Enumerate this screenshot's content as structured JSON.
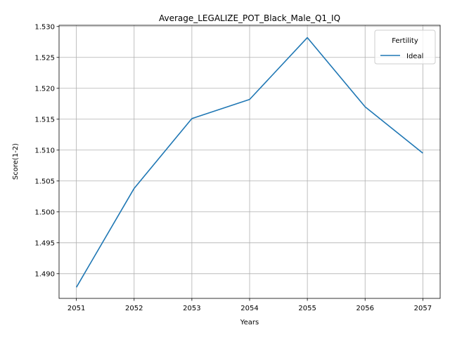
{
  "chart_data": {
    "type": "line",
    "title": "Average_LEGALIZE_POT_Black_Male_Q1_IQ",
    "xlabel": "Years",
    "ylabel": "Score(1-2)",
    "x": [
      2051,
      2052,
      2053,
      2054,
      2055,
      2056,
      2057
    ],
    "x_ticks": [
      "2051",
      "2052",
      "2053",
      "2054",
      "2055",
      "2056",
      "2057"
    ],
    "y_ticks": [
      "1.490",
      "1.495",
      "1.500",
      "1.505",
      "1.510",
      "1.515",
      "1.520",
      "1.525",
      "1.530"
    ],
    "xlim": [
      2050.7,
      2057.3
    ],
    "ylim": [
      1.486,
      1.5302
    ],
    "grid": true,
    "legend": {
      "title": "Fertility",
      "placement": "top-right"
    },
    "series": [
      {
        "name": "Ideal",
        "color": "#1f77b4",
        "values": [
          1.4878,
          1.5038,
          1.5151,
          1.5182,
          1.5282,
          1.517,
          1.5095
        ]
      }
    ]
  }
}
